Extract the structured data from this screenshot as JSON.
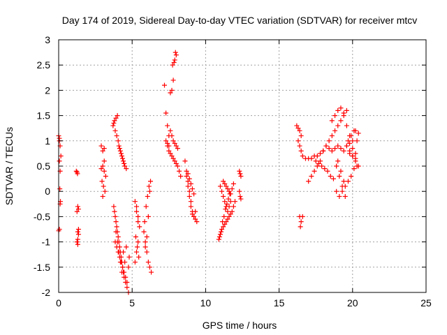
{
  "chart_data": {
    "type": "scatter",
    "title": "Day 174 of 2019, Sidereal Day-to-day VTEC variation (SDTVAR) for receiver mtcv",
    "xlabel": "GPS time / hours",
    "ylabel": "SDTVAR / TECUs",
    "xlim": [
      0,
      25
    ],
    "ylim": [
      -2,
      3
    ],
    "x_ticks": [
      "0",
      "5",
      "10",
      "15",
      "20",
      "25"
    ],
    "y_ticks": [
      "-2",
      "-1.5",
      "-1",
      "-0.5",
      "0",
      "0.5",
      "1",
      "1.5",
      "2",
      "2.5",
      "3"
    ],
    "grid": true,
    "marker": "+",
    "marker_color": "#ff0000",
    "series": [
      {
        "name": "SDTVAR",
        "x": [
          0.0,
          0.05,
          0.1,
          0.15,
          0.05,
          0.1,
          0.08,
          0.12,
          0.1,
          0.05,
          0.0,
          0.05,
          1.2,
          1.25,
          1.3,
          1.35,
          1.25,
          1.3,
          1.35,
          1.3,
          1.25,
          1.3,
          1.35,
          1.28,
          2.9,
          3.0,
          3.1,
          3.0,
          3.1,
          3.2,
          2.95,
          3.05,
          3.15,
          3.0,
          3.1,
          2.9,
          3.7,
          3.8,
          3.9,
          4.0,
          3.75,
          3.85,
          3.95,
          4.05,
          4.1,
          4.2,
          4.3,
          4.4,
          4.5,
          4.6,
          4.15,
          4.25,
          4.35,
          4.45,
          3.75,
          3.85,
          3.95,
          4.05,
          4.15,
          4.25,
          4.35,
          4.45,
          4.55,
          4.65,
          4.75,
          3.8,
          3.9,
          4.0,
          4.1,
          4.2,
          4.3,
          4.4,
          3.85,
          3.95,
          4.05,
          4.15,
          4.25,
          4.35,
          4.45,
          4.55,
          4.65,
          4.75,
          4.8,
          3.9,
          4.0,
          4.1,
          4.2,
          4.3,
          4.4,
          4.5,
          4.6,
          5.2,
          5.3,
          5.4,
          5.5,
          5.25,
          5.35,
          5.45,
          5.2,
          5.3,
          5.4,
          5.3,
          5.4,
          5.8,
          5.9,
          6.0,
          6.1,
          6.2,
          6.3,
          5.85,
          5.95,
          6.05,
          6.15,
          6.25,
          5.9,
          6.0,
          6.1,
          6.2,
          7.2,
          7.3,
          7.4,
          7.5,
          7.3,
          7.4,
          7.5,
          7.6,
          7.7,
          7.8,
          7.75,
          7.85,
          7.9,
          8.0,
          7.95,
          7.4,
          7.5,
          7.6,
          7.7,
          7.8,
          7.9,
          8.0,
          8.1,
          8.2,
          8.3,
          7.6,
          7.7,
          7.8,
          7.9,
          8.0,
          8.1,
          8.6,
          8.7,
          8.8,
          8.9,
          9.0,
          9.1,
          9.2,
          9.3,
          9.4,
          8.7,
          8.8,
          8.9,
          9.0,
          9.1,
          9.2,
          9.3,
          8.8,
          8.9,
          9.0,
          9.1,
          9.2,
          10.9,
          11.0,
          11.1,
          11.2,
          11.3,
          11.4,
          11.5,
          11.6,
          11.7,
          11.8,
          11.9,
          12.0,
          11.0,
          11.1,
          11.2,
          11.3,
          11.4,
          11.5,
          11.6,
          11.7,
          11.2,
          11.3,
          11.4,
          11.5,
          11.6,
          11.7,
          11.8,
          11.9,
          10.95,
          11.05,
          11.15,
          11.25,
          11.35,
          11.45,
          11.55,
          11.65,
          12.3,
          12.35,
          12.4,
          12.3,
          12.35,
          12.4,
          16.2,
          16.3,
          16.4,
          16.5,
          16.3,
          16.4,
          16.5,
          16.6,
          16.4,
          16.5,
          16.6,
          16.45,
          16.8,
          17.0,
          17.2,
          17.4,
          17.6,
          17.8,
          18.0,
          18.2,
          18.4,
          18.6,
          18.8,
          19.0,
          19.2,
          19.4,
          19.6,
          19.8,
          20.0,
          20.2,
          20.4,
          17.0,
          17.2,
          17.4,
          17.6,
          17.8,
          18.0,
          18.2,
          18.4,
          18.6,
          18.8,
          19.0,
          19.2,
          19.4,
          19.6,
          19.8,
          20.0,
          20.2,
          17.5,
          17.7,
          17.9,
          18.1,
          18.3,
          18.5,
          18.7,
          18.9,
          19.1,
          19.3,
          19.5,
          19.7,
          19.9,
          20.1,
          20.3,
          18.6,
          18.8,
          19.0,
          19.2,
          19.4,
          19.6,
          18.9,
          19.1,
          19.3,
          19.5,
          19.0,
          19.2,
          19.4,
          19.6,
          19.8,
          20.0,
          20.2,
          20.4,
          19.7,
          19.9,
          20.1,
          20.3,
          19.8,
          20.0,
          20.2
        ],
        "y": [
          1.1,
          1.0,
          0.9,
          0.7,
          0.6,
          0.4,
          0.05,
          -0.2,
          -0.25,
          -0.75,
          -0.78,
          1.05,
          0.4,
          0.38,
          -0.3,
          -0.35,
          -0.4,
          -0.8,
          -0.85,
          -0.95,
          -1.0,
          -1.05,
          -0.75,
          0.35,
          0.9,
          0.8,
          0.6,
          0.5,
          0.4,
          0.3,
          0.2,
          0.1,
          0.0,
          -0.1,
          0.85,
          0.45,
          1.3,
          1.4,
          1.45,
          1.5,
          1.35,
          1.2,
          1.1,
          1.0,
          0.9,
          0.8,
          0.7,
          0.6,
          0.5,
          0.45,
          0.85,
          0.75,
          0.65,
          0.55,
          -0.3,
          -0.5,
          -0.7,
          -0.9,
          -1.1,
          -1.3,
          -1.5,
          -1.7,
          -1.8,
          -1.9,
          -2.0,
          -0.4,
          -0.6,
          -0.8,
          -1.0,
          -1.2,
          -1.4,
          -1.6,
          -1.0,
          -1.1,
          -1.2,
          -1.3,
          -1.4,
          -1.5,
          -1.6,
          -1.7,
          -1.8,
          -1.5,
          -1.3,
          -0.8,
          -1.0,
          -1.2,
          -1.4,
          -1.6,
          -1.2,
          -1.4,
          -1.1,
          -0.2,
          -0.3,
          -0.5,
          -0.7,
          -0.9,
          -1.1,
          -1.3,
          -1.4,
          -1.2,
          -1.0,
          -0.4,
          -0.6,
          -0.8,
          -1.0,
          -1.2,
          -1.4,
          -1.5,
          -1.6,
          -0.6,
          -0.3,
          -0.1,
          0.1,
          0.2,
          -1.1,
          -0.9,
          -0.5,
          0.0,
          2.1,
          1.55,
          1.3,
          1.1,
          1.0,
          0.95,
          0.9,
          1.95,
          2.0,
          2.2,
          2.5,
          2.55,
          2.6,
          2.7,
          2.75,
          0.9,
          0.8,
          0.75,
          0.7,
          0.65,
          0.6,
          0.55,
          0.5,
          0.4,
          0.3,
          1.2,
          1.1,
          1.0,
          0.95,
          0.9,
          0.85,
          0.6,
          0.4,
          0.2,
          0.0,
          -0.2,
          -0.4,
          -0.5,
          -0.55,
          -0.6,
          0.3,
          0.1,
          -0.1,
          -0.3,
          -0.45,
          -0.5,
          -0.4,
          0.35,
          0.25,
          0.15,
          0.05,
          -0.05,
          -0.95,
          -0.85,
          -0.75,
          -0.7,
          -0.65,
          -0.6,
          -0.55,
          -0.5,
          -0.45,
          -0.4,
          -0.3,
          -0.2,
          0.1,
          0.0,
          -0.1,
          -0.2,
          -0.3,
          -0.4,
          -0.3,
          -0.2,
          0.2,
          0.15,
          0.1,
          0.05,
          0.0,
          -0.05,
          0.05,
          0.15,
          -0.9,
          -0.8,
          -0.6,
          -0.5,
          -0.35,
          -0.25,
          -0.15,
          -0.05,
          0.4,
          0.35,
          0.3,
          0.0,
          -0.1,
          -0.15,
          1.3,
          1.25,
          1.2,
          1.1,
          1.0,
          0.9,
          0.8,
          0.7,
          -0.5,
          -0.6,
          -0.5,
          -0.7,
          0.65,
          0.2,
          0.3,
          0.4,
          0.5,
          0.6,
          0.8,
          0.9,
          1.0,
          1.4,
          1.5,
          1.6,
          1.65,
          1.55,
          1.3,
          1.1,
          1.0,
          1.2,
          1.15,
          0.65,
          0.65,
          0.7,
          0.7,
          0.75,
          0.8,
          0.9,
          0.85,
          0.8,
          0.85,
          0.9,
          0.85,
          0.8,
          0.9,
          0.95,
          0.85,
          0.75,
          0.6,
          0.55,
          0.5,
          0.45,
          0.4,
          0.3,
          0.25,
          0.0,
          -0.1,
          0.0,
          0.1,
          0.2,
          0.3,
          0.45,
          0.5,
          1.1,
          1.2,
          1.3,
          1.4,
          1.5,
          1.6,
          0.5,
          0.3,
          0.1,
          -0.1,
          0.6,
          0.4,
          0.2,
          0.9,
          0.8,
          0.7,
          0.6,
          0.5,
          1.0,
          1.1,
          1.2,
          1.0,
          0.75,
          0.7,
          0.65
        ]
      }
    ]
  }
}
